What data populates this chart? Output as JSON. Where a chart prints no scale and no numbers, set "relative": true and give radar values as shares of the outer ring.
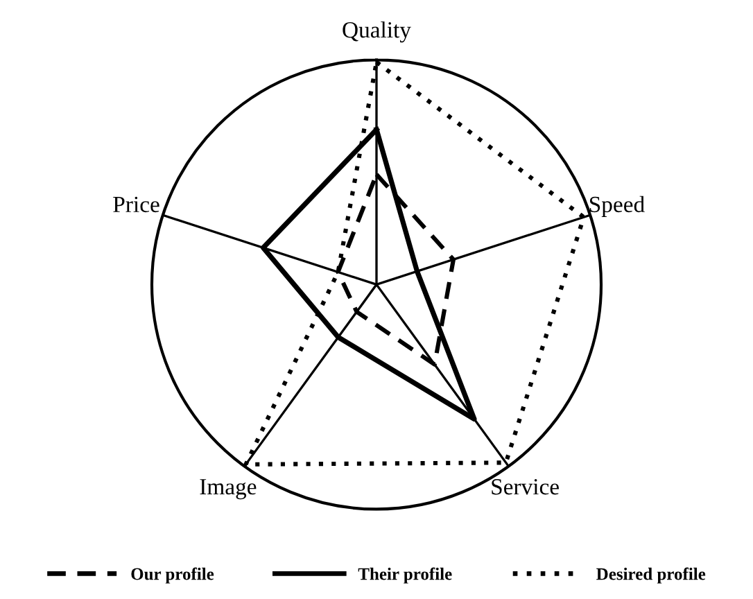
{
  "chart_data": {
    "type": "radar",
    "relative": true,
    "categories": [
      "Quality",
      "Speed",
      "Service",
      "Image",
      "Price"
    ],
    "series": [
      {
        "name": "Our profile",
        "color": "#000000",
        "line_style": "dashed",
        "values": [
          0.49,
          0.36,
          0.44,
          0.15,
          0.18
        ]
      },
      {
        "name": "Their profile",
        "color": "#000000",
        "line_style": "solid",
        "values": [
          0.69,
          0.19,
          0.74,
          0.29,
          0.53
        ]
      },
      {
        "name": "Desired profile",
        "color": "#000000",
        "line_style": "dotted",
        "values": [
          0.99,
          0.97,
          0.98,
          0.99,
          0.18
        ]
      }
    ],
    "legend": "bottom"
  }
}
